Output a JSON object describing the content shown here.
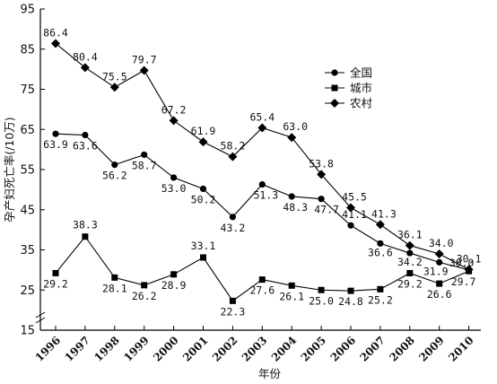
{
  "chart_data": {
    "type": "line",
    "xlabel": "年份",
    "ylabel": "孕产妇死亡率(/10万)",
    "ylim": [
      15,
      95
    ],
    "yticks": [
      15,
      25,
      35,
      45,
      55,
      65,
      75,
      85,
      95
    ],
    "categories": [
      "1996",
      "1997",
      "1998",
      "1999",
      "2000",
      "2001",
      "2002",
      "2003",
      "2004",
      "2005",
      "2006",
      "2007",
      "2008",
      "2009",
      "2010"
    ],
    "legend_position": "top-right",
    "grid": false,
    "series": [
      {
        "name": "全国",
        "marker": "circle",
        "values": [
          63.9,
          63.6,
          56.2,
          58.7,
          53.0,
          50.2,
          43.2,
          51.3,
          48.3,
          47.7,
          41.1,
          36.6,
          34.2,
          31.9,
          30.0
        ],
        "labels": [
          "63.9",
          "63.6",
          "56.2",
          "58.7",
          "53.0",
          "50.2",
          "43.2",
          "51.3",
          "48.3",
          "47.7",
          "41.1",
          "36.6",
          "34.2",
          "31.9",
          "30.0"
        ]
      },
      {
        "name": "城市",
        "marker": "square",
        "values": [
          29.2,
          38.3,
          28.1,
          26.2,
          28.9,
          33.1,
          22.3,
          27.6,
          26.1,
          25.0,
          24.8,
          25.2,
          29.2,
          26.6,
          29.7
        ],
        "labels": [
          "29.2",
          "38.3",
          "28.1",
          "26.2",
          "28.9",
          "33.1",
          "22.3",
          "27.6",
          "26.1",
          "25.0",
          "24.8",
          "25.2",
          "29.2",
          "26.6",
          "29.7"
        ]
      },
      {
        "name": "农村",
        "marker": "diamond",
        "values": [
          86.4,
          80.4,
          75.5,
          79.7,
          67.2,
          61.9,
          58.2,
          65.4,
          63.0,
          53.8,
          45.5,
          41.3,
          36.1,
          34.0,
          30.1
        ],
        "labels": [
          "86.4",
          "80.4",
          "75.5",
          "79.7",
          "67.2",
          "61.9",
          "58.2",
          "65.4",
          "63.0",
          "53.8",
          "45.5",
          "41.3",
          "36.1",
          "34.0",
          "30.1"
        ]
      }
    ]
  }
}
